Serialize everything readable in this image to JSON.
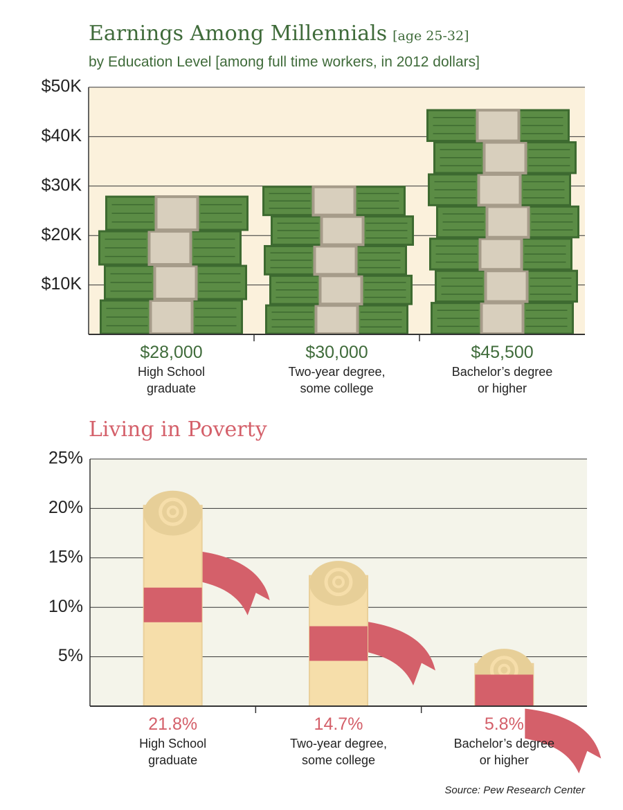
{
  "chart_data": [
    {
      "type": "bill-stack",
      "title": "Earnings Among Millennials",
      "title_note": "[age 25-32]",
      "subtitle": "by Education Level [among full time workers, in 2012 dollars]",
      "categories": [
        "High School graduate",
        "Two-year degree, some college",
        "Bachelor’s degree or higher"
      ],
      "values": [
        28000,
        30000,
        45500
      ],
      "value_labels": [
        "$28,000",
        "$30,000",
        "$45,500"
      ],
      "color": "#5b8c45",
      "ylim": [
        0,
        50000
      ],
      "yticks": [
        {
          "value": 10000,
          "label": "$10K"
        },
        {
          "value": 20000,
          "label": "$20K"
        },
        {
          "value": 30000,
          "label": "$30K"
        },
        {
          "value": 40000,
          "label": "$40K"
        },
        {
          "value": 50000,
          "label": "$50K"
        }
      ],
      "grid": true
    },
    {
      "type": "scroll",
      "title": "Living in Poverty",
      "categories": [
        "High School graduate",
        "Two-year degree, some college",
        "Bachelor’s degree or higher"
      ],
      "values": [
        21.8,
        14.7,
        5.8
      ],
      "value_labels": [
        "21.8%",
        "14.7%",
        "5.8%"
      ],
      "color": "#d4606a",
      "ylim": [
        0,
        25
      ],
      "yticks": [
        {
          "value": 5,
          "label": "5%"
        },
        {
          "value": 10,
          "label": "10%"
        },
        {
          "value": 15,
          "label": "15%"
        },
        {
          "value": 20,
          "label": "20%"
        },
        {
          "value": 25,
          "label": "25%"
        }
      ],
      "grid": true
    }
  ],
  "source": "Source: Pew Research Center"
}
